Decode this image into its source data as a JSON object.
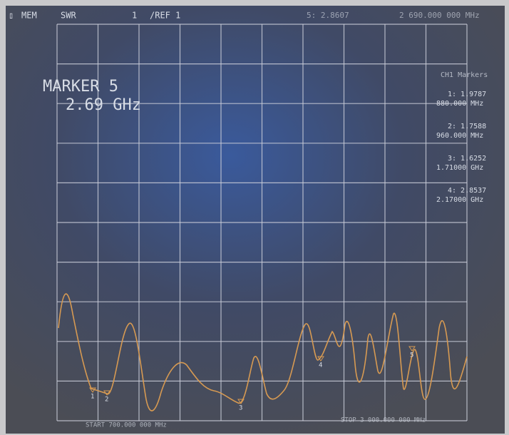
{
  "header": {
    "mem": "MEM",
    "swr": "SWR",
    "channel": "1",
    "ref": "/REF 1",
    "active_value": "5: 2.8607",
    "active_freq": "2 690.000 000 MHz"
  },
  "marker_box": {
    "title": "MARKER 5",
    "value": "2.69 GHz"
  },
  "marker_list": {
    "title": "CH1 Markers",
    "items": [
      {
        "value": "1: 1.9787",
        "freq": "880.000 MHz"
      },
      {
        "value": "2: 1.7588",
        "freq": "960.000 MHz"
      },
      {
        "value": "3: 1.6252",
        "freq": "1.71000 GHz"
      },
      {
        "value": "4: 2.8537",
        "freq": "2.17000 GHz"
      }
    ]
  },
  "trace_markers": [
    "1",
    "2",
    "3",
    "4",
    "5"
  ],
  "footer": {
    "start": "START 700.000 000 MHz",
    "stop": "STOP 3 000.000 000 MHz"
  }
}
